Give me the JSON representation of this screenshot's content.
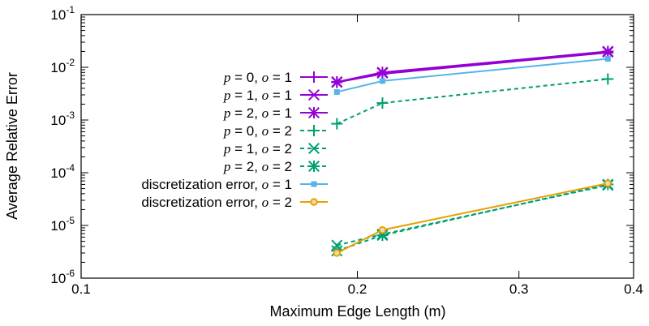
{
  "chart_data": {
    "type": "line",
    "title": "",
    "xlabel": "Maximum Edge Length (m)",
    "ylabel": "Average Relative Error",
    "xscale": "log",
    "yscale": "log",
    "xlim": [
      0.1,
      0.4
    ],
    "ylim": [
      1e-06,
      0.1
    ],
    "grid": false,
    "legend_position": "top-left",
    "xticks": [
      {
        "value": 0.1,
        "label": "0.1"
      },
      {
        "value": 0.2,
        "label": "0.2"
      },
      {
        "value": 0.3,
        "label": "0.3"
      },
      {
        "value": 0.4,
        "label": "0.4"
      }
    ],
    "yticks": [
      {
        "value": 1e-06,
        "base": "10",
        "exp": "-6"
      },
      {
        "value": 1e-05,
        "base": "10",
        "exp": "-5"
      },
      {
        "value": 0.0001,
        "base": "10",
        "exp": "-4"
      },
      {
        "value": 0.001,
        "base": "10",
        "exp": "-3"
      },
      {
        "value": 0.01,
        "base": "10",
        "exp": "-2"
      },
      {
        "value": 0.1,
        "base": "10",
        "exp": "-1"
      }
    ],
    "x": [
      0.19,
      0.213,
      0.375
    ],
    "series": [
      {
        "name": "p = 0, o = 1",
        "label_parts": {
          "p": "p",
          "p_val": " = 0, ",
          "o": "o",
          "o_val": " = 1"
        },
        "color": "#9400d3",
        "marker": "plus",
        "dash": "solid",
        "values": [
          0.0052,
          0.0075,
          0.019
        ]
      },
      {
        "name": "p = 1, o = 1",
        "label_parts": {
          "p": "p",
          "p_val": " = 1, ",
          "o": "o",
          "o_val": " = 1"
        },
        "color": "#9400d3",
        "marker": "cross",
        "dash": "solid",
        "values": [
          0.0052,
          0.0078,
          0.0195
        ]
      },
      {
        "name": "p = 2, o = 1",
        "label_parts": {
          "p": "p",
          "p_val": " = 2, ",
          "o": "o",
          "o_val": " = 1"
        },
        "color": "#9400d3",
        "marker": "star",
        "dash": "solid",
        "values": [
          0.0053,
          0.008,
          0.02
        ]
      },
      {
        "name": "p = 0, o = 2",
        "label_parts": {
          "p": "p",
          "p_val": " = 0, ",
          "o": "o",
          "o_val": " = 2"
        },
        "color": "#009e73",
        "marker": "plus",
        "dash": "dashed",
        "values": [
          0.00085,
          0.0021,
          0.006
        ]
      },
      {
        "name": "p = 1, o = 2",
        "label_parts": {
          "p": "p",
          "p_val": " = 1, ",
          "o": "o",
          "o_val": " = 2"
        },
        "color": "#009e73",
        "marker": "cross",
        "dash": "dashed",
        "values": [
          4.2e-06,
          6.8e-06,
          5.8e-05
        ]
      },
      {
        "name": "p = 2, o = 2",
        "label_parts": {
          "p": "p",
          "p_val": " = 2, ",
          "o": "o",
          "o_val": " = 2"
        },
        "color": "#009e73",
        "marker": "star",
        "dash": "dashed",
        "values": [
          3.3e-06,
          6.5e-06,
          6e-05
        ]
      },
      {
        "name": "discretization error, o = 1",
        "label_parts": {
          "p": "",
          "p_val": "discretization error, ",
          "o": "o",
          "o_val": " = 1"
        },
        "color": "#56b4e9",
        "marker": "square",
        "dash": "solid",
        "values": [
          0.0034,
          0.0055,
          0.0145
        ]
      },
      {
        "name": "discretization error, o = 2",
        "label_parts": {
          "p": "",
          "p_val": "discretization error, ",
          "o": "o",
          "o_val": " = 2"
        },
        "color": "#e69f00",
        "marker": "circle",
        "dash": "solid",
        "values": [
          3e-06,
          8.2e-06,
          6.3e-05
        ]
      }
    ]
  }
}
